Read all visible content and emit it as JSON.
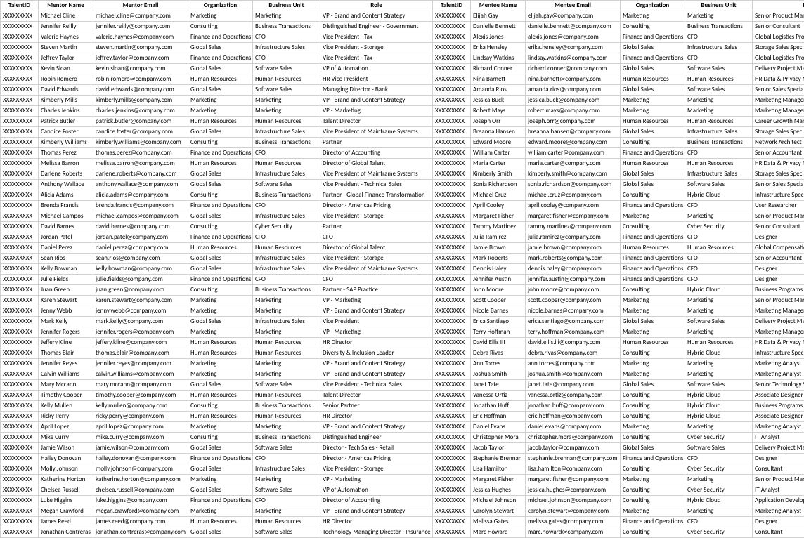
{
  "columns": [
    "TalentID",
    "Mentor Name",
    "Mentor Email",
    "Organization",
    "Business Unit",
    "Role",
    "TalentID",
    "Mentee Name",
    "Mentee Email",
    "Organization",
    "Business Unit",
    "Role"
  ],
  "rows": [
    [
      "XXXXXXXXX",
      "Michael Cline",
      "michael.cline@company.com",
      "Marketing",
      "Marketing",
      "VP - Brand and Content Strategy",
      "XXXXXXXXX",
      "Elijah Gay",
      "elijah.gay@company.com",
      "Marketing",
      "Marketing",
      "Senior Product Marketing Manager"
    ],
    [
      "XXXXXXXXX",
      "Jennifer Reilly",
      "jennifer.reilly@company.com",
      "Consulting",
      "Business Transactions",
      "Distinguished Engineer - Government",
      "XXXXXXXXX",
      "Danielle Bennett",
      "danielle.bennett@company.com",
      "Consulting",
      "Business Transactions",
      "Senior Consultant"
    ],
    [
      "XXXXXXXXX",
      "Valerie Haynes",
      "valerie.haynes@company.com",
      "Finance and Operations",
      "CFO",
      "Vice President - Tax",
      "XXXXXXXXX",
      "Alexis Jones",
      "alexis.jones@company.com",
      "Finance and Operations",
      "CFO",
      "Global Logistics Procurement"
    ],
    [
      "XXXXXXXXX",
      "Steven Martin",
      "steven.martin@company.com",
      "Global Sales",
      "Infrastructure Sales",
      "Vice President - Storage",
      "XXXXXXXXX",
      "Erika Hensley",
      "erika.hensley@company.com",
      "Global Sales",
      "Infrastructure Sales",
      "Storage Sales Specialist"
    ],
    [
      "XXXXXXXXX",
      "Jeffrey Taylor",
      "jeffrey.taylor@company.com",
      "Finance and Operations",
      "CFO",
      "Vice President - Tax",
      "XXXXXXXXX",
      "Lindsay Watkins",
      "lindsay.watkins@company.com",
      "Finance and Operations",
      "CFO",
      "Global Logistics Procurement"
    ],
    [
      "XXXXXXXXX",
      "Kevin Sloan",
      "kevin.sloan@company.com",
      "Global Sales",
      "Software Sales",
      "VP of Automation",
      "XXXXXXXXX",
      "Richard Conner",
      "richard.conner@company.com",
      "Global Sales",
      "Software Sales",
      "Delivery Project Manager"
    ],
    [
      "XXXXXXXXX",
      "Robin Romero",
      "robin.romero@company.com",
      "Human Resources",
      "Human Resources",
      "HR Vice President",
      "XXXXXXXXX",
      "Nina Barnett",
      "nina.barnett@company.com",
      "Human Resources",
      "Human Resources",
      "HR Data & Privacy Manager"
    ],
    [
      "XXXXXXXXX",
      "David Edwards",
      "david.edwards@company.com",
      "Global Sales",
      "Software Sales",
      "Managing Director - Bank",
      "XXXXXXXXX",
      "Amanda Rios",
      "amanda.rios@company.com",
      "Global Sales",
      "Software Sales",
      "Senior Sales Specialist"
    ],
    [
      "XXXXXXXXX",
      "Kimberly Mills",
      "kimberly.mills@company.com",
      "Marketing",
      "Marketing",
      "VP - Brand and Content Strategy",
      "XXXXXXXXX",
      "Jessica Buck",
      "jessica.buck@company.com",
      "Marketing",
      "Marketing",
      "Marketing Manager"
    ],
    [
      "XXXXXXXXX",
      "Charles Jenkins",
      "charles.jenkins@company.com",
      "Marketing",
      "Marketing",
      "VP - Marketing",
      "XXXXXXXXX",
      "Robert Mays",
      "robert.mays@company.com",
      "Marketing",
      "Marketing",
      "Marketing Manager"
    ],
    [
      "XXXXXXXXX",
      "Patrick Butler",
      "patrick.butler@company.com",
      "Human Resources",
      "Human Resources",
      "Talent Director",
      "XXXXXXXXX",
      "Joseph Orr",
      "joseph.orr@company.com",
      "Human Resources",
      "Human Resources",
      "Career Growth Manager"
    ],
    [
      "XXXXXXXXX",
      "Candice Foster",
      "candice.foster@company.com",
      "Global Sales",
      "Infrastructure Sales",
      "Vice President of Mainframe Systems",
      "XXXXXXXXX",
      "Breanna Hansen",
      "breanna.hansen@company.com",
      "Global Sales",
      "Infrastructure Sales",
      "Storage Sales Specialist"
    ],
    [
      "XXXXXXXXX",
      "Kimberly Williams",
      "kimberly.williams@company.com",
      "Consulting",
      "Business Transactions",
      "Partner",
      "XXXXXXXXX",
      "Edward Moore",
      "edward.moore@company.com",
      "Consulting",
      "Business Transactions",
      "Network Architect"
    ],
    [
      "XXXXXXXXX",
      "Thomas Perez",
      "thomas.perez@company.com",
      "Finance and Operations",
      "CFO",
      "Director of Accounting",
      "XXXXXXXXX",
      "William Carter",
      "william.carter@company.com",
      "Finance and Operations",
      "CFO",
      "Senior Accountant"
    ],
    [
      "XXXXXXXXX",
      "Melissa Barron",
      "melissa.barron@company.com",
      "Human Resources",
      "Human Resources",
      "Director of Global Talent",
      "XXXXXXXXX",
      "Maria Carter",
      "maria.carter@company.com",
      "Human Resources",
      "Human Resources",
      "HR Data & Privacy Manager"
    ],
    [
      "XXXXXXXXX",
      "Darlene Roberts",
      "darlene.roberts@company.com",
      "Global Sales",
      "Infrastructure Sales",
      "Vice President of Mainframe Systems",
      "XXXXXXXXX",
      "Kimberly Smith",
      "kimberly.smith@company.com",
      "Global Sales",
      "Infrastructure Sales",
      "Storage Sales Specialist"
    ],
    [
      "XXXXXXXXX",
      "Anthony Wallace",
      "anthony.wallace@company.com",
      "Global Sales",
      "Software Sales",
      "Vice President - Technical Sales",
      "XXXXXXXXX",
      "Sonia Richardson",
      "sonia.richardson@company.com",
      "Global Sales",
      "Software Sales",
      "Senior Sales Specialist"
    ],
    [
      "XXXXXXXXX",
      "Alicia Adams",
      "alicia.adams@company.com",
      "Consulting",
      "Business Transactions",
      "Partner - Global Finance Transformation",
      "XXXXXXXXX",
      "Michael Cruz",
      "michael.cruz@company.com",
      "Consulting",
      "Hybrid Cloud",
      "Infrastructure Specialist"
    ],
    [
      "XXXXXXXXX",
      "Brenda Francis",
      "brenda.francis@company.com",
      "Finance and Operations",
      "CFO",
      "Director - Americas Pricing",
      "XXXXXXXXX",
      "April Cooley",
      "april.cooley@company.com",
      "Finance and Operations",
      "CFO",
      "User Researcher"
    ],
    [
      "XXXXXXXXX",
      "Michael Campos",
      "michael.campos@company.com",
      "Global Sales",
      "Infrastructure Sales",
      "Vice President - Storage",
      "XXXXXXXXX",
      "Margaret Fisher",
      "margaret.fisher@company.com",
      "Marketing",
      "Marketing",
      "Senior Product Marketing Manager"
    ],
    [
      "XXXXXXXXX",
      "David Barnes",
      "david.barnes@company.com",
      "Consulting",
      "Cyber Security",
      "Partner",
      "XXXXXXXXX",
      "Tammy Martinez",
      "tammy.martinez@company.com",
      "Consulting",
      "Cyber Security",
      "Senior Consultant"
    ],
    [
      "XXXXXXXXX",
      "Jordan Patel",
      "jordan.patel@company.com",
      "Finance and Operations",
      "CFO",
      "CFO",
      "XXXXXXXXX",
      "Julia Ramirez",
      "julia.ramirez@company.com",
      "Finance and Operations",
      "CFO",
      "Designer"
    ],
    [
      "XXXXXXXXX",
      "Daniel Perez",
      "daniel.perez@company.com",
      "Human Resources",
      "Human Resources",
      "Director of Global Talent",
      "XXXXXXXXX",
      "Jamie Brown",
      "jamie.brown@company.com",
      "Human Resources",
      "Human Resources",
      "Global Compensation Specialist"
    ],
    [
      "XXXXXXXXX",
      "Sean Rios",
      "sean.rios@company.com",
      "Global Sales",
      "Infrastructure Sales",
      "Vice President - Storage",
      "XXXXXXXXX",
      "Mark Roberts",
      "mark.roberts@company.com",
      "Finance and Operations",
      "CFO",
      "Senior Accountant"
    ],
    [
      "XXXXXXXXX",
      "Kelly Bowman",
      "kelly.bowman@company.com",
      "Global Sales",
      "Infrastructure Sales",
      "Vice President of Mainframe Systems",
      "XXXXXXXXX",
      "Dennis Haley",
      "dennis.haley@company.com",
      "Finance and Operations",
      "CFO",
      "Designer"
    ],
    [
      "XXXXXXXXX",
      "Julie Fields",
      "julie.fields@company.com",
      "Finance and Operations",
      "CFO",
      "CFO",
      "XXXXXXXXX",
      "Jennifer Austin",
      "jennifer.austin@company.com",
      "Finance and Operations",
      "CFO",
      "Designer"
    ],
    [
      "XXXXXXXXX",
      "Juan Green",
      "juan.green@company.com",
      "Consulting",
      "Business Transactions",
      "Partner - SAP Practice",
      "XXXXXXXXX",
      "John Moore",
      "john.moore@company.com",
      "Consulting",
      "Hybrid Cloud",
      "Business Programs Manager"
    ],
    [
      "XXXXXXXXX",
      "Karen Stewart",
      "karen.stewart@company.com",
      "Marketing",
      "Marketing",
      "VP - Marketing",
      "XXXXXXXXX",
      "Scott Cooper",
      "scott.cooper@company.com",
      "Marketing",
      "Marketing",
      "Senior Product Marketing Manager"
    ],
    [
      "XXXXXXXXX",
      "Jenny Webb",
      "jenny.webb@company.com",
      "Marketing",
      "Marketing",
      "VP - Brand and Content Strategy",
      "XXXXXXXXX",
      "Nicole Barnes",
      "nicole.barnes@company.com",
      "Marketing",
      "Marketing",
      "Marketing Manager"
    ],
    [
      "XXXXXXXXX",
      "Mark Kelly",
      "mark.kelly@company.com",
      "Global Sales",
      "Infrastructure Sales",
      "Vice President",
      "XXXXXXXXX",
      "Erica Santiago",
      "erica.santiago@company.com",
      "Global Sales",
      "Software Sales",
      "Delivery Project Manager"
    ],
    [
      "XXXXXXXXX",
      "Jennifer Rogers",
      "jennifer.rogers@company.com",
      "Marketing",
      "Marketing",
      "VP - Marketing",
      "XXXXXXXXX",
      "Terry Hoffman",
      "terry.hoffman@company.com",
      "Marketing",
      "Marketing",
      "Marketing Manager"
    ],
    [
      "XXXXXXXXX",
      "Jeffery Kline",
      "jeffery.kline@company.com",
      "Human Resources",
      "Human Resources",
      "HR Director",
      "XXXXXXXXX",
      "David Ellis III",
      "david.ellis.iii@company.com",
      "Human Resources",
      "Human Resources",
      "HR Data & Privacy Manager"
    ],
    [
      "XXXXXXXXX",
      "Thomas Blair",
      "thomas.blair@company.com",
      "Human Resources",
      "Human Resources",
      "Diversity & Inclusion Leader",
      "XXXXXXXXX",
      "Debra Rivas",
      "debra.rivas@company.com",
      "Consulting",
      "Hybrid Cloud",
      "Infrastructure Specialist"
    ],
    [
      "XXXXXXXXX",
      "Jennifer Reyes",
      "jennifer.reyes@company.com",
      "Marketing",
      "Marketing",
      "VP - Brand and Content Strategy",
      "XXXXXXXXX",
      "Ann Torres",
      "ann.torres@company.com",
      "Marketing",
      "Marketing",
      "Marketing Analyst"
    ],
    [
      "XXXXXXXXX",
      "Calvin Williams",
      "calvin.williams@company.com",
      "Marketing",
      "Marketing",
      "VP - Brand and Content Strategy",
      "XXXXXXXXX",
      "Joshua Smith",
      "joshua.smith@company.com",
      "Marketing",
      "Marketing",
      "Marketing Analyst"
    ],
    [
      "XXXXXXXXX",
      "Mary Mccann",
      "mary.mccann@company.com",
      "Global Sales",
      "Software Sales",
      "Vice President - Technical Sales",
      "XXXXXXXXX",
      "Janet Tate",
      "janet.tate@company.com",
      "Global Sales",
      "Software Sales",
      "Senior Technology Sales"
    ],
    [
      "XXXXXXXXX",
      "Timothy Cooper",
      "timothy.cooper@company.com",
      "Human Resources",
      "Human Resources",
      "Talent Director",
      "XXXXXXXXX",
      "Vanessa Ortiz",
      "vanessa.ortiz@company.com",
      "Consulting",
      "Hybrid Cloud",
      "Associate Designer"
    ],
    [
      "XXXXXXXXX",
      "Kelly Mullen",
      "kelly.mullen@company.com",
      "Consulting",
      "Business Transactions",
      "Senior Partner",
      "XXXXXXXXX",
      "Jonathan Huff",
      "jonathan.huff@company.com",
      "Consulting",
      "Hybrid Cloud",
      "Business Programs Manager"
    ],
    [
      "XXXXXXXXX",
      "Ricky Perry",
      "ricky.perry@company.com",
      "Human Resources",
      "Human Resources",
      "HR Director",
      "XXXXXXXXX",
      "Eric Hoffman",
      "eric.hoffman@company.com",
      "Consulting",
      "Hybrid Cloud",
      "Associate Designer"
    ],
    [
      "XXXXXXXXX",
      "April Lopez",
      "april.lopez@company.com",
      "Marketing",
      "Marketing",
      "VP - Brand and Content Strategy",
      "XXXXXXXXX",
      "Daniel Evans",
      "daniel.evans@company.com",
      "Marketing",
      "Marketing",
      "Marketing Analyst"
    ],
    [
      "XXXXXXXXX",
      "Mike Curry",
      "mike.curry@company.com",
      "Consulting",
      "Business Transactions",
      "Distinguished Engineer",
      "XXXXXXXXX",
      "Christopher Mora",
      "christopher.mora@company.com",
      "Consulting",
      "Cyber Security",
      "IT Analyst"
    ],
    [
      "XXXXXXXXX",
      "Jamie Wilson",
      "jamie.wilson@company.com",
      "Global Sales",
      "Software Sales",
      "Director - Tech Sales - Retail",
      "XXXXXXXXX",
      "Jacob Taylor",
      "jacob.taylor@company.com",
      "Global Sales",
      "Software Sales",
      "Delivery Project Manager"
    ],
    [
      "XXXXXXXXX",
      "Hailey Donovan",
      "hailey.donovan@company.com",
      "Finance and Operations",
      "CFO",
      "Director - Americas Pricing",
      "XXXXXXXXX",
      "Stephanie Brennan",
      "stephanie.brennan@company.com",
      "Finance and Operations",
      "CFO",
      "Designer"
    ],
    [
      "XXXXXXXXX",
      "Molly Johnson",
      "molly.johnson@company.com",
      "Global Sales",
      "Infrastructure Sales",
      "Vice President - Storage",
      "XXXXXXXXX",
      "Lisa Hamilton",
      "lisa.hamilton@company.com",
      "Consulting",
      "Cyber Security",
      "Consultant"
    ],
    [
      "XXXXXXXXX",
      "Katherine Horton",
      "katherine.horton@company.com",
      "Marketing",
      "Marketing",
      "VP - Marketing",
      "XXXXXXXXX",
      "Margaret Fisher",
      "margaret.fisher@company.com",
      "Marketing",
      "Marketing",
      "Senior Product Marketing Manager"
    ],
    [
      "XXXXXXXXX",
      "Chelsea Russell",
      "chelsea.russell@company.com",
      "Global Sales",
      "Software Sales",
      "VP of Automation",
      "XXXXXXXXX",
      "Jessica Hughes",
      "jessica.hughes@company.com",
      "Consulting",
      "Cyber Security",
      "IT Analyst"
    ],
    [
      "XXXXXXXXX",
      "Luke Higgins",
      "luke.higgins@company.com",
      "Finance and Operations",
      "CFO",
      "Director of Accounting",
      "XXXXXXXXX",
      "Michael Johnson",
      "michael.johnson@company.com",
      "Consulting",
      "Hybrid Cloud",
      "Application Developer"
    ],
    [
      "XXXXXXXXX",
      "Megan Crawford",
      "megan.crawford@company.com",
      "Marketing",
      "Marketing",
      "VP - Brand and Content Strategy",
      "XXXXXXXXX",
      "Carolyn Stewart",
      "carolyn.stewart@company.com",
      "Marketing",
      "Marketing",
      "Marketing Analyst"
    ],
    [
      "XXXXXXXXX",
      "James Reed",
      "james.reed@company.com",
      "Human Resources",
      "Human Resources",
      "HR Director",
      "XXXXXXXXX",
      "Melissa Gates",
      "melissa.gates@company.com",
      "Finance and Operations",
      "CFO",
      "Designer"
    ],
    [
      "XXXXXXXXX",
      "Jonathan Contreras",
      "jonathan.contreras@company.com",
      "Global Sales",
      "Software Sales",
      "Technology Managing Director - Insurance",
      "XXXXXXXXX",
      "Marc Howard",
      "marc.howard@company.com",
      "Consulting",
      "Cyber Security",
      "Consultant"
    ]
  ],
  "col_classes": [
    "c-tid",
    "c-name",
    "c-email",
    "c-org",
    "c-bu",
    "c-role",
    "c-tid2",
    "c-name2",
    "c-email2",
    "c-org2",
    "c-bu2",
    "c-role2"
  ]
}
